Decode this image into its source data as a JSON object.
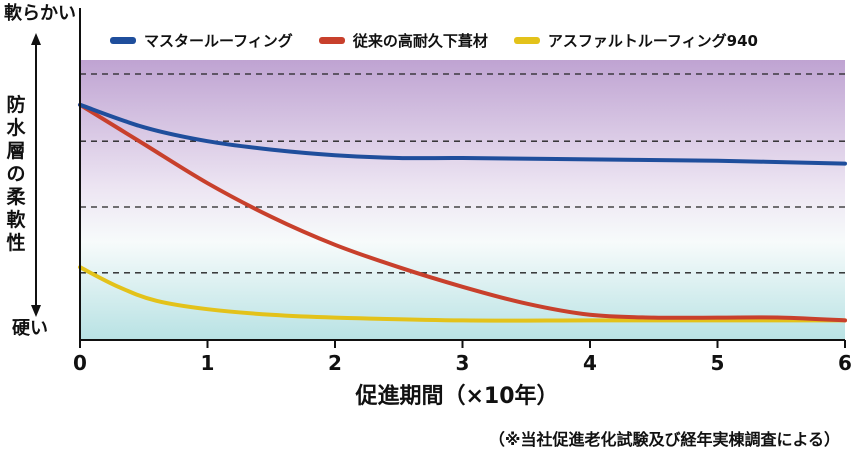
{
  "chart_data": {
    "type": "line",
    "xlabel": "促進期間（×10年）",
    "ylabel": "防水層の柔軟性",
    "y_top_label": "軟らかい",
    "y_bottom_label": "硬い",
    "note": "（※当社促進老化試験及び経年実棟調査による）",
    "xlim": [
      0,
      6
    ],
    "ylim": [
      0,
      100
    ],
    "x_ticks": [
      "0",
      "1",
      "2",
      "3",
      "4",
      "5",
      "6"
    ],
    "grid": "horizontal dashed",
    "legend_position": "top",
    "series": [
      {
        "name": "マスタールーフィング",
        "color": "#1f4e9c",
        "points": [
          [
            0,
            84
          ],
          [
            0.5,
            76
          ],
          [
            1,
            71
          ],
          [
            1.5,
            68
          ],
          [
            2,
            66
          ],
          [
            2.5,
            65
          ],
          [
            3,
            65
          ],
          [
            4,
            64.5
          ],
          [
            5,
            64
          ],
          [
            6,
            63
          ]
        ]
      },
      {
        "name": "従来の高耐久下葺材",
        "color": "#c8402c",
        "points": [
          [
            0,
            84
          ],
          [
            0.5,
            70
          ],
          [
            1,
            56
          ],
          [
            1.5,
            44
          ],
          [
            2,
            34
          ],
          [
            2.5,
            26
          ],
          [
            3,
            19
          ],
          [
            3.5,
            13
          ],
          [
            4,
            9
          ],
          [
            4.5,
            8
          ],
          [
            5,
            8
          ],
          [
            5.5,
            8
          ],
          [
            6,
            7
          ]
        ]
      },
      {
        "name": "アスファルトルーフィング940",
        "color": "#e3c21a",
        "points": [
          [
            0,
            26
          ],
          [
            0.3,
            19
          ],
          [
            0.6,
            14
          ],
          [
            1,
            11
          ],
          [
            1.5,
            9
          ],
          [
            2,
            8
          ],
          [
            3,
            7
          ],
          [
            4,
            7
          ],
          [
            5,
            7
          ],
          [
            6,
            7
          ]
        ]
      }
    ]
  }
}
